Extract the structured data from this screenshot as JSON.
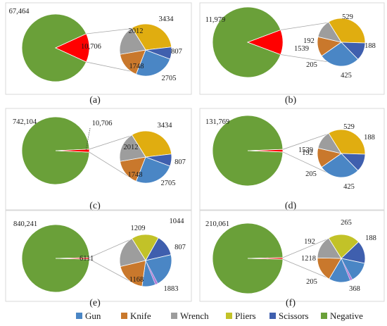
{
  "chart_data": [
    {
      "type": "pie",
      "panel_label": "(a)",
      "main": {
        "negative": 67464,
        "positive": 10706,
        "negative_label": "67,464",
        "positive_label": "10,706"
      },
      "detail": [
        {
          "category": "Gun",
          "value": 2705,
          "label": "2705"
        },
        {
          "category": "Knife",
          "value": 1748,
          "label": "1748"
        },
        {
          "category": "Wrench",
          "value": 2012,
          "label": "2012"
        },
        {
          "category": "Pliers",
          "value": 3434,
          "label": "3434"
        },
        {
          "category": "Scissors",
          "value": 807,
          "label": "807"
        }
      ]
    },
    {
      "type": "pie",
      "panel_label": "(b)",
      "main": {
        "negative": 11979,
        "positive": 1539,
        "negative_label": "11,979",
        "positive_label": "1539"
      },
      "detail": [
        {
          "category": "Gun",
          "value": 425,
          "label": "425"
        },
        {
          "category": "Knife",
          "value": 205,
          "label": "205"
        },
        {
          "category": "Wrench",
          "value": 192,
          "label": "192"
        },
        {
          "category": "Pliers",
          "value": 529,
          "label": "529"
        },
        {
          "category": "Scissors",
          "value": 188,
          "label": "188"
        }
      ]
    },
    {
      "type": "pie",
      "panel_label": "(c)",
      "main": {
        "negative": 742104,
        "positive": 10706,
        "negative_label": "742,104",
        "positive_label": "10,706"
      },
      "detail": [
        {
          "category": "Gun",
          "value": 2705,
          "label": "2705"
        },
        {
          "category": "Knife",
          "value": 1748,
          "label": "1748"
        },
        {
          "category": "Wrench",
          "value": 2012,
          "label": "2012"
        },
        {
          "category": "Pliers",
          "value": 3434,
          "label": "3434"
        },
        {
          "category": "Scissors",
          "value": 807,
          "label": "807"
        }
      ]
    },
    {
      "type": "pie",
      "panel_label": "(d)",
      "main": {
        "negative": 131769,
        "positive": 1539,
        "negative_label": "131,769",
        "positive_label": "1539"
      },
      "detail": [
        {
          "category": "Gun",
          "value": 425,
          "label": "425"
        },
        {
          "category": "Knife",
          "value": 205,
          "label": "205"
        },
        {
          "category": "Wrench",
          "value": 192,
          "label": "192"
        },
        {
          "category": "Pliers",
          "value": 529,
          "label": "529"
        },
        {
          "category": "Scissors",
          "value": 188,
          "label": "188"
        }
      ]
    },
    {
      "type": "pie",
      "panel_label": "(e)",
      "main": {
        "negative": 840241,
        "positive": 6111,
        "negative_label": "840,241",
        "positive_label": "6111"
      },
      "detail": [
        {
          "category": "Gun",
          "value": 1883,
          "label": "1883"
        },
        {
          "category": "Knife",
          "value": 1168,
          "label": "1168"
        },
        {
          "category": "Wrench",
          "value": 1209,
          "label": "1209"
        },
        {
          "category": "Pliers",
          "value": 1044,
          "label": "1044"
        },
        {
          "category": "Scissors",
          "value": 807,
          "label": "807"
        }
      ]
    },
    {
      "type": "pie",
      "panel_label": "(f)",
      "main": {
        "negative": 210061,
        "positive": 1218,
        "negative_label": "210,061",
        "positive_label": "1218"
      },
      "detail": [
        {
          "category": "Gun",
          "value": 368,
          "label": "368"
        },
        {
          "category": "Knife",
          "value": 205,
          "label": "205"
        },
        {
          "category": "Wrench",
          "value": 192,
          "label": "192"
        },
        {
          "category": "Pliers",
          "value": 265,
          "label": "265"
        },
        {
          "category": "Scissors",
          "value": 188,
          "label": "188"
        }
      ]
    }
  ],
  "legend": [
    {
      "name": "Gun",
      "color": "#4a86c5"
    },
    {
      "name": "Knife",
      "color": "#c9782c"
    },
    {
      "name": "Wrench",
      "color": "#9d9d9d"
    },
    {
      "name": "Pliers",
      "color": "#c2c228"
    },
    {
      "name": "Scissors",
      "color": "#3f5fae"
    },
    {
      "name": "Negative",
      "color": "#6aa039"
    }
  ],
  "colors": {
    "negative": "#6aa039",
    "positive": "#ff0000",
    "gun": "#4a86c5",
    "knife": "#c9782c",
    "wrench": "#9d9d9d",
    "pliers": "#e0ad10",
    "pliers_ef": "#c2c228",
    "scissors": "#3f5fae"
  }
}
